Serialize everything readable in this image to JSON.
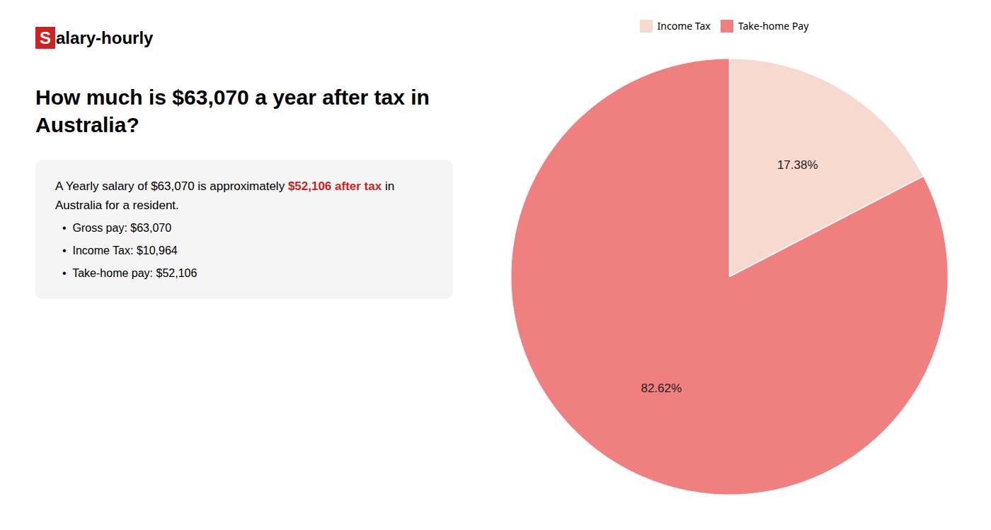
{
  "chart_data": {
    "type": "pie",
    "title": "How much is $63,070 a year after tax in Australia?",
    "annotations": [
      [
        {
          "text": "S",
          "color": "#ffffff",
          "background": "#cc2222"
        },
        {
          "text": "alary-hourly"
        }
      ],
      [
        {
          "text": "A Yearly salary of $63,070 is approximately "
        },
        {
          "text": "$52,106 after tax",
          "color": "#cc2222"
        },
        {
          "text": " in"
        }
      ],
      [
        {
          "text": "Australia for a resident."
        }
      ],
      [
        {
          "text": "•  Gross pay: $63,070"
        }
      ],
      [
        {
          "text": "•  Income Tax: $10,964"
        }
      ],
      [
        {
          "text": "•  Take-home pay: $52,106"
        }
      ]
    ],
    "categories": [
      "Income Tax",
      "Take-home Pay"
    ],
    "values": [
      17.38,
      82.62
    ],
    "value_labels": [
      "17.38%",
      "82.62%"
    ],
    "colors": [
      "#f7d9d0",
      "#f08080"
    ],
    "data_labels": true,
    "legend": "top"
  }
}
